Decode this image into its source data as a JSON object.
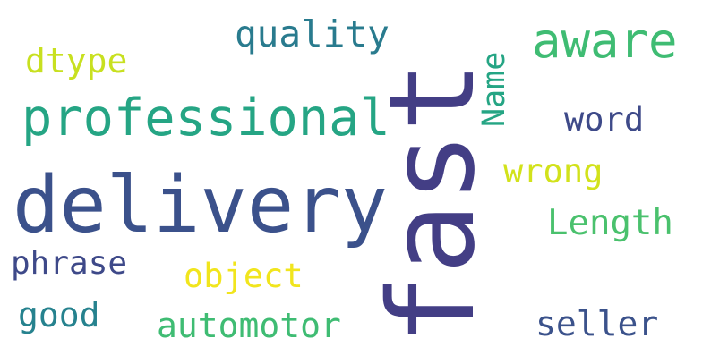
{
  "cloud": {
    "words": [
      {
        "text": "delivery",
        "color": "#3b518b"
      },
      {
        "text": "fast",
        "color": "#433e85"
      },
      {
        "text": "professional",
        "color": "#25a584"
      },
      {
        "text": "aware",
        "color": "#3fbc73"
      },
      {
        "text": "quality",
        "color": "#297b8e"
      },
      {
        "text": "dtype",
        "color": "#c8e020"
      },
      {
        "text": "Name",
        "color": "#25a584"
      },
      {
        "text": "word",
        "color": "#3e4a89"
      },
      {
        "text": "wrong",
        "color": "#d2e21b"
      },
      {
        "text": "Length",
        "color": "#4ac16d"
      },
      {
        "text": "phrase",
        "color": "#3e4989"
      },
      {
        "text": "object",
        "color": "#f1e51d"
      },
      {
        "text": "good",
        "color": "#26828e"
      },
      {
        "text": "automotor",
        "color": "#3fbc73"
      },
      {
        "text": "seller",
        "color": "#3b528b"
      }
    ]
  }
}
